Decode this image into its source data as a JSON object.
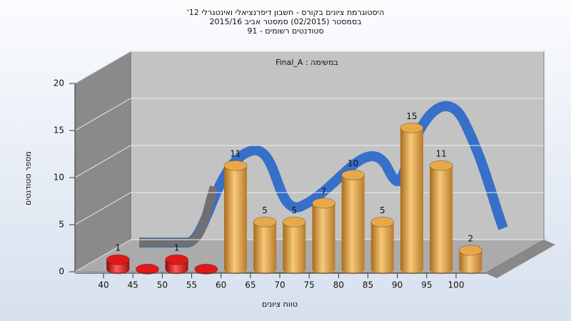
{
  "chart_data": {
    "type": "bar",
    "title": [
      "היסטוגרמת ציונים בקורס - חשבון דיפרנציאלי ואינטגרלי 12'",
      "בסמסטר (02/2015) סמסטר אביב 2015/16",
      "סטודנטים רשומים - 91"
    ],
    "subtitle": "במשימה : Final_A",
    "y_label": "מספר סטודנטים",
    "x_label": "טווח ציונים",
    "categories": [
      "40",
      "45",
      "50",
      "55",
      "60",
      "65",
      "70",
      "75",
      "80",
      "85",
      "90",
      "95",
      "100"
    ],
    "values": [
      1,
      0,
      1,
      0,
      11,
      5,
      5,
      7,
      10,
      5,
      15,
      11,
      2
    ],
    "colors": [
      "#e01818",
      "#e01818",
      "#e01818",
      "#e01818",
      "#e8a84a",
      "#e8a84a",
      "#e8a84a",
      "#e8a84a",
      "#e8a84a",
      "#e8a84a",
      "#e8a84a",
      "#e8a84a",
      "#e8a84a"
    ],
    "ylim": [
      0,
      20
    ],
    "yticks": [
      0,
      5,
      10,
      15,
      20
    ],
    "grid": true
  }
}
